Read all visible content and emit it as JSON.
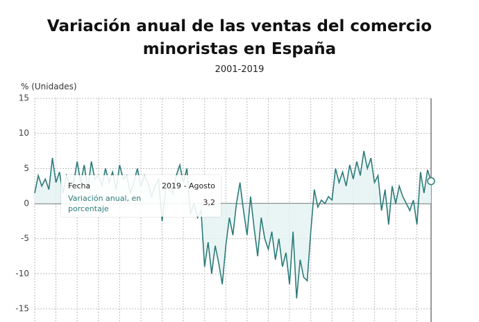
{
  "chart_data": {
    "type": "line",
    "title": "Variación anual de las ventas del comercio minoristas en España",
    "subtitle": "2001-2019",
    "y_label": "% (Unidades)",
    "ylim": [
      -15,
      15
    ],
    "yticks": [
      -15,
      -10,
      -5,
      0,
      5,
      10,
      15
    ],
    "grid": true,
    "series": [
      {
        "name": "Variación anual, en porcentaje",
        "color": "#2b7a78",
        "values": [
          1.5,
          4,
          2.5,
          3.5,
          2,
          6.5,
          3,
          4.5,
          1.5,
          4,
          2.5,
          3,
          6,
          3,
          5.5,
          2,
          6,
          3.5,
          4,
          2.5,
          5,
          3,
          4.5,
          2,
          5.5,
          3.5,
          4,
          1.5,
          3,
          5,
          2.5,
          4,
          3,
          1,
          2.5,
          3.5,
          -2.5,
          2,
          3,
          1.5,
          4,
          5.5,
          3,
          5,
          -1.5,
          0,
          -2,
          -1,
          -9,
          -5.5,
          -10,
          -6,
          -8.5,
          -11.5,
          -6,
          -2,
          -4.5,
          0,
          3,
          -1,
          -4.5,
          1,
          -3.5,
          -7.5,
          -2,
          -5,
          -6.5,
          -4,
          -8,
          -5,
          -9,
          -7,
          -11.5,
          -4,
          -13.5,
          -8,
          -10.5,
          -11,
          -4,
          2,
          -0.5,
          0.5,
          0,
          1,
          0.5,
          5,
          3,
          4.5,
          2.5,
          5.5,
          3.5,
          6,
          4,
          7.5,
          5,
          6.5,
          3,
          4,
          -1,
          2,
          -3,
          2.5,
          0,
          2.5,
          1,
          0,
          -1,
          0.5,
          -3,
          4.5,
          1.5,
          4.8,
          3.2
        ]
      }
    ],
    "tooltip": {
      "title": "Fecha",
      "date": "2019 - Agosto",
      "value": "3,2"
    }
  }
}
